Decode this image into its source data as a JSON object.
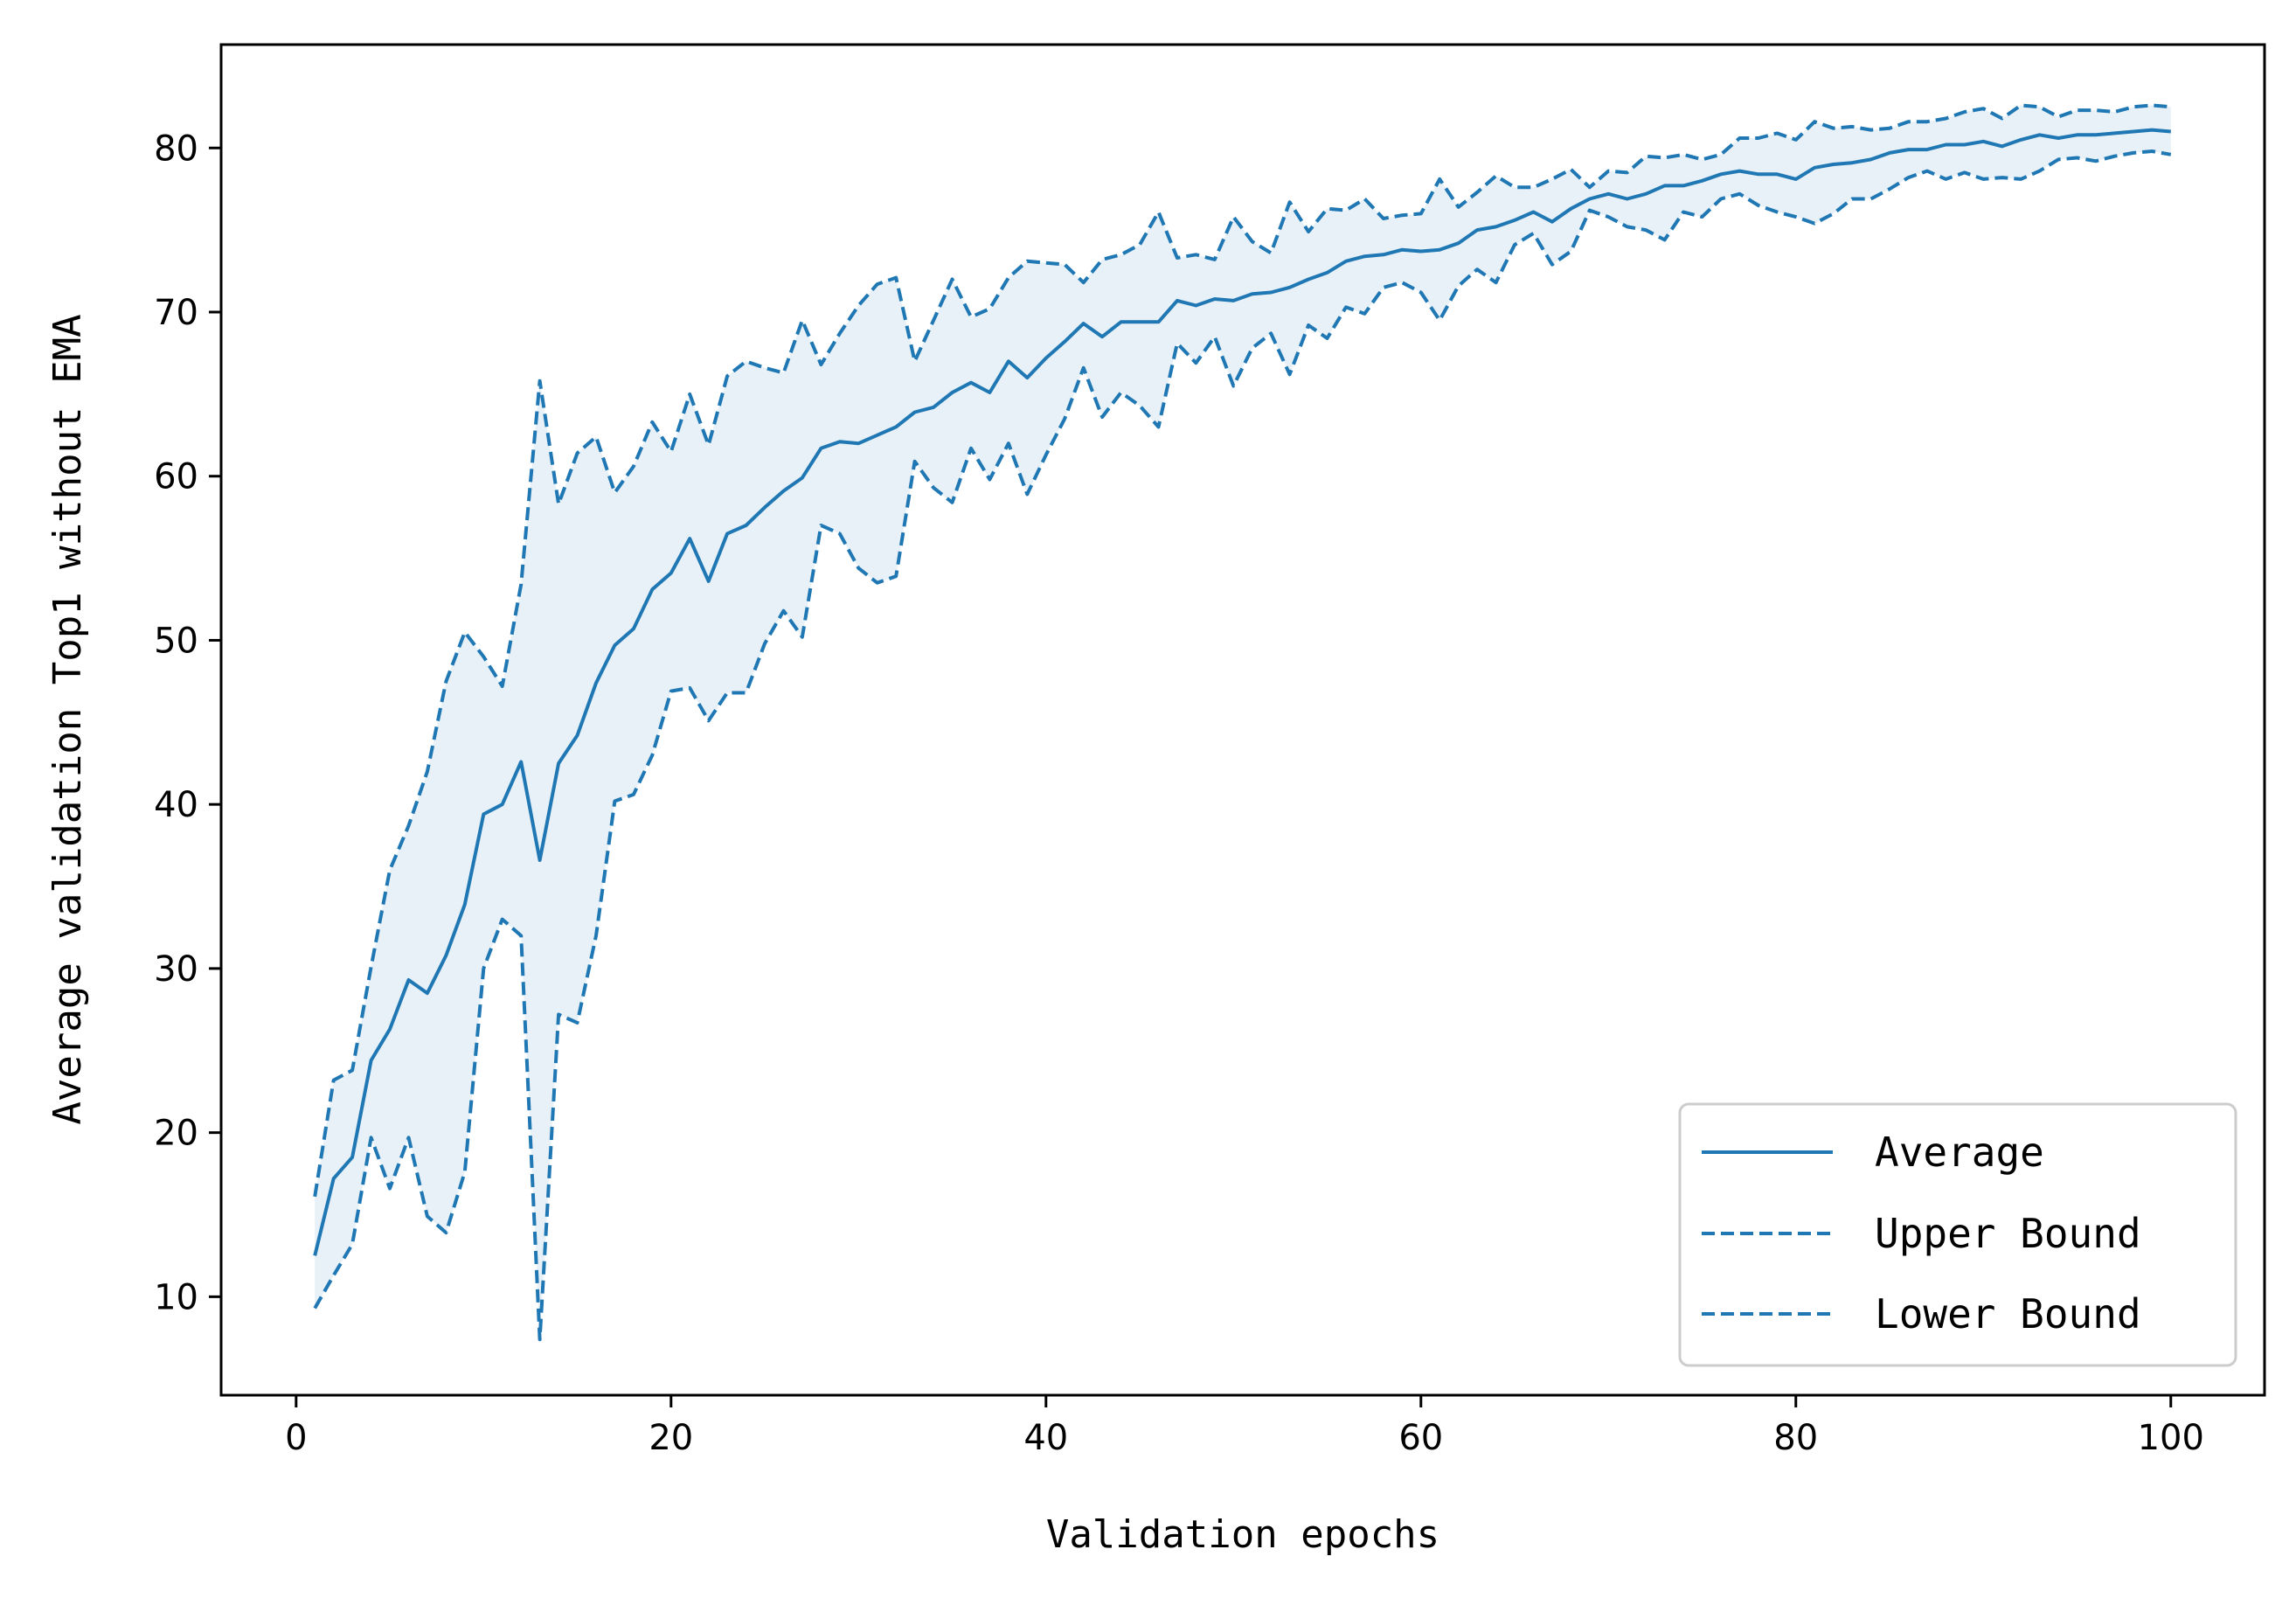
{
  "chart_data": {
    "type": "line",
    "title": "",
    "xlabel": "Validation epochs",
    "ylabel": "Average validation Top1 without EMA",
    "xlim": [
      -4,
      105
    ],
    "ylim": [
      4,
      86.3
    ],
    "xticks": [
      0,
      20,
      40,
      60,
      80,
      100
    ],
    "yticks": [
      10,
      20,
      30,
      40,
      50,
      60,
      70,
      80
    ],
    "grid": false,
    "legend_position": "lower-right",
    "color": "#1f77b4",
    "fill_color": "#1f77b4",
    "fill_between": [
      "Lower Bound",
      "Upper Bound"
    ],
    "x_start": 1,
    "x_step": 1,
    "series": [
      {
        "name": "Average",
        "style": "solid",
        "values": [
          12.5,
          17.2,
          18.5,
          24.4,
          26.3,
          29.3,
          28.5,
          30.8,
          33.9,
          39.4,
          40.0,
          42.6,
          36.6,
          42.5,
          44.2,
          47.4,
          49.7,
          50.7,
          53.1,
          54.1,
          56.2,
          53.6,
          56.5,
          57.0,
          58.1,
          59.1,
          59.9,
          61.7,
          62.1,
          62.0,
          62.5,
          63.0,
          63.9,
          64.2,
          65.1,
          65.7,
          65.1,
          67.0,
          66.0,
          67.2,
          68.2,
          69.3,
          68.5,
          69.4,
          69.4,
          69.4,
          70.7,
          70.4,
          70.8,
          70.7,
          71.1,
          71.2,
          71.5,
          72.0,
          72.4,
          73.1,
          73.4,
          73.5,
          73.8,
          73.7,
          73.8,
          74.2,
          75.0,
          75.2,
          75.6,
          76.1,
          75.5,
          76.3,
          76.9,
          77.2,
          76.9,
          77.2,
          77.7,
          77.7,
          78.0,
          78.4,
          78.6,
          78.4,
          78.4,
          78.1,
          78.8,
          79.0,
          79.1,
          79.3,
          79.7,
          79.9,
          79.9,
          80.2,
          80.2,
          80.4,
          80.1,
          80.5,
          80.8,
          80.6,
          80.8,
          80.8,
          80.9,
          81.0,
          81.1,
          81.0
        ]
      },
      {
        "name": "Upper Bound",
        "style": "dashed",
        "values": [
          16.1,
          23.2,
          23.8,
          30.1,
          36.0,
          38.7,
          42.0,
          47.5,
          50.5,
          49.0,
          47.2,
          53.4,
          65.8,
          58.3,
          61.4,
          62.4,
          59.0,
          60.6,
          63.3,
          61.5,
          65.0,
          61.9,
          66.1,
          67.0,
          66.6,
          66.3,
          69.5,
          66.8,
          68.7,
          70.4,
          71.7,
          72.1,
          67.0,
          69.5,
          72.0,
          69.7,
          70.2,
          72.1,
          73.1,
          73.0,
          72.9,
          71.8,
          73.2,
          73.5,
          74.1,
          76.1,
          73.3,
          73.5,
          73.2,
          75.8,
          74.3,
          73.6,
          76.7,
          74.9,
          76.3,
          76.2,
          76.9,
          75.7,
          75.9,
          76.0,
          78.1,
          76.4,
          77.3,
          78.3,
          77.6,
          77.6,
          78.1,
          78.7,
          77.6,
          78.6,
          78.5,
          79.5,
          79.4,
          79.6,
          79.3,
          79.6,
          80.6,
          80.6,
          80.9,
          80.5,
          81.6,
          81.2,
          81.3,
          81.1,
          81.2,
          81.6,
          81.6,
          81.8,
          82.2,
          82.4,
          81.8,
          82.6,
          82.5,
          81.9,
          82.3,
          82.3,
          82.2,
          82.5,
          82.6,
          82.5
        ]
      },
      {
        "name": "Lower Bound",
        "style": "dashed",
        "values": [
          9.3,
          11.3,
          13.2,
          19.7,
          16.6,
          19.7,
          14.9,
          13.9,
          17.6,
          30.0,
          33.0,
          32.0,
          7.4,
          27.2,
          26.7,
          32.0,
          40.2,
          40.6,
          43.0,
          46.9,
          47.1,
          45.1,
          46.8,
          46.8,
          49.8,
          51.8,
          50.2,
          57.0,
          56.5,
          54.4,
          53.5,
          53.9,
          60.9,
          59.3,
          58.4,
          61.7,
          59.8,
          62.0,
          58.9,
          61.3,
          63.5,
          66.6,
          63.6,
          65.1,
          64.3,
          63.0,
          68.1,
          66.9,
          68.5,
          65.5,
          67.8,
          68.7,
          66.2,
          69.2,
          68.4,
          70.3,
          69.9,
          71.5,
          71.8,
          71.2,
          69.5,
          71.6,
          72.6,
          71.8,
          74.1,
          74.8,
          72.9,
          73.7,
          76.2,
          75.8,
          75.2,
          75.0,
          74.4,
          76.1,
          75.8,
          76.9,
          77.2,
          76.5,
          76.1,
          75.8,
          75.4,
          76.0,
          76.9,
          76.9,
          77.5,
          78.2,
          78.6,
          78.1,
          78.5,
          78.1,
          78.2,
          78.1,
          78.6,
          79.3,
          79.4,
          79.2,
          79.5,
          79.7,
          79.8,
          79.6
        ]
      }
    ]
  }
}
